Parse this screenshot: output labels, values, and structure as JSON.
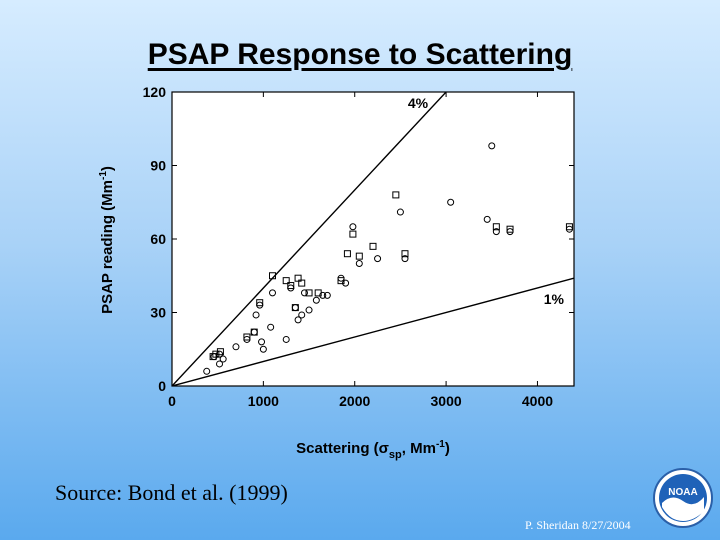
{
  "slide": {
    "title": "PSAP Response to Scattering",
    "source": "Source: Bond et al. (1999)",
    "credit": "P. Sheridan  8/27/2004",
    "logo_text": "NOAA"
  },
  "chart_data": {
    "type": "scatter",
    "xlabel": "Scattering (σsp, Mm⁻¹)",
    "ylabel": "PSAP reading (Mm⁻¹)",
    "xlim": [
      0,
      4400
    ],
    "ylim": [
      0,
      120
    ],
    "xticks": [
      0,
      1000,
      2000,
      3000,
      4000
    ],
    "yticks": [
      0,
      30,
      60,
      90,
      120
    ],
    "reference_lines": [
      {
        "label": "4%",
        "slope": 0.04
      },
      {
        "label": "1%",
        "slope": 0.01
      }
    ],
    "series": [
      {
        "marker": "circle",
        "x": [
          380,
          460,
          520,
          560,
          520,
          700,
          820,
          900,
          920,
          960,
          980,
          1000,
          1080,
          1100,
          1250,
          1300,
          1350,
          1380,
          1420,
          1450,
          1500,
          1580,
          1650,
          1700,
          1850,
          1900,
          1980,
          2050,
          2250,
          2500,
          2550,
          3050,
          3450,
          3500,
          3550,
          3700,
          4350
        ],
        "y": [
          6,
          12,
          9,
          11,
          13,
          16,
          19,
          22,
          29,
          33,
          18,
          15,
          24,
          38,
          19,
          40,
          32,
          27,
          29,
          38,
          31,
          35,
          37,
          37,
          44,
          42,
          65,
          50,
          52,
          71,
          52,
          75,
          68,
          98,
          63,
          63,
          64
        ]
      },
      {
        "marker": "square",
        "x": [
          450,
          480,
          530,
          820,
          900,
          960,
          1100,
          1250,
          1300,
          1350,
          1380,
          1420,
          1500,
          1600,
          1850,
          1920,
          1980,
          2050,
          2200,
          2450,
          2550,
          3550,
          3700,
          4350
        ],
        "y": [
          12,
          13,
          14,
          20,
          22,
          34,
          45,
          43,
          41,
          32,
          44,
          42,
          38,
          38,
          43,
          54,
          62,
          53,
          57,
          78,
          54,
          65,
          64,
          65
        ]
      }
    ]
  }
}
